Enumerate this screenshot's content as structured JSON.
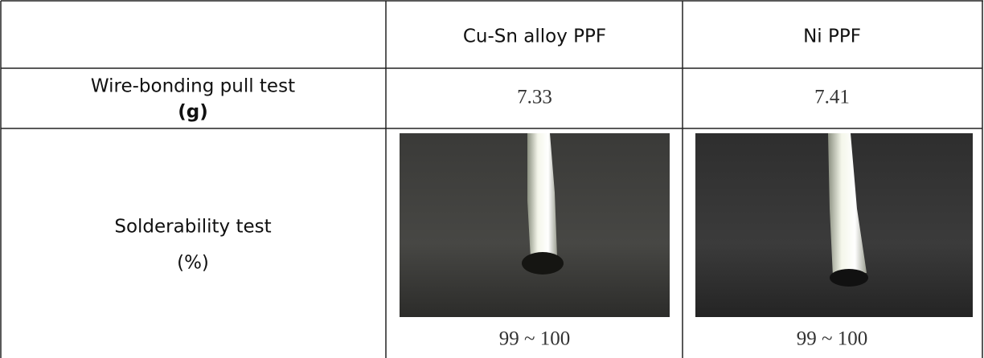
{
  "table": {
    "header": [
      "Cu-Sn alloy PPF",
      "Ni PPF"
    ],
    "rows": [
      {
        "label": [
          "Wire-bonding pull test",
          "(g)"
        ],
        "values": [
          7.33,
          7.41
        ]
      },
      {
        "label": [
          "Solderability test",
          "(%)"
        ],
        "values": [
          "99 ~ 100",
          "99 ~ 100"
        ]
      }
    ]
  }
}
